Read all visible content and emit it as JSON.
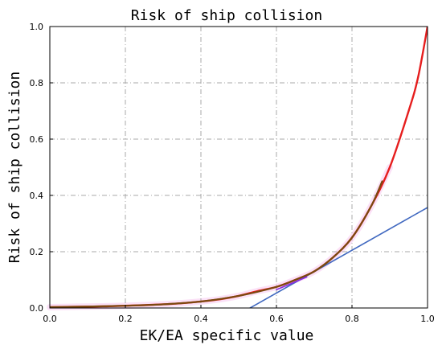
{
  "chart_data": {
    "type": "line",
    "title": "Risk of ship collision",
    "xlabel": "EK/EA specific value",
    "ylabel": "Risk of ship collision",
    "xlim": [
      0.0,
      1.0
    ],
    "ylim": [
      0.0,
      1.0
    ],
    "x_ticks": [
      "0.0",
      "0.2",
      "0.4",
      "0.6",
      "0.8",
      "1.0"
    ],
    "y_ticks": [
      "0.0",
      "0.2",
      "0.4",
      "0.6",
      "0.8",
      "1.0"
    ],
    "grid": true,
    "series": [
      {
        "color": "#e61e1e",
        "style": "curve",
        "points": [
          [
            0.0,
            0.003
          ],
          [
            0.05,
            0.004
          ],
          [
            0.1,
            0.005
          ],
          [
            0.15,
            0.006
          ],
          [
            0.2,
            0.008
          ],
          [
            0.25,
            0.01
          ],
          [
            0.3,
            0.013
          ],
          [
            0.35,
            0.017
          ],
          [
            0.4,
            0.023
          ],
          [
            0.45,
            0.031
          ],
          [
            0.5,
            0.043
          ],
          [
            0.55,
            0.06
          ],
          [
            0.6,
            0.075
          ],
          [
            0.65,
            0.1
          ],
          [
            0.7,
            0.13
          ],
          [
            0.75,
            0.18
          ],
          [
            0.8,
            0.25
          ],
          [
            0.85,
            0.36
          ],
          [
            0.9,
            0.5
          ],
          [
            0.95,
            0.7
          ],
          [
            0.975,
            0.82
          ],
          [
            1.0,
            1.0
          ]
        ]
      },
      {
        "color": "#4169c0",
        "style": "straight",
        "points": [
          [
            0.53,
            0.0
          ],
          [
            1.0,
            0.357
          ]
        ]
      },
      {
        "color": "#7a4a10",
        "style": "curve",
        "points": [
          [
            0.0,
            0.003
          ],
          [
            0.1,
            0.005
          ],
          [
            0.2,
            0.008
          ],
          [
            0.3,
            0.013
          ],
          [
            0.4,
            0.023
          ],
          [
            0.5,
            0.043
          ],
          [
            0.6,
            0.075
          ],
          [
            0.65,
            0.1
          ],
          [
            0.7,
            0.13
          ],
          [
            0.75,
            0.18
          ],
          [
            0.8,
            0.25
          ],
          [
            0.85,
            0.36
          ],
          [
            0.88,
            0.45
          ]
        ]
      },
      {
        "color": "#8a2be2",
        "style": "straight",
        "points": [
          [
            0.6,
            0.065
          ],
          [
            0.68,
            0.11
          ]
        ]
      }
    ]
  }
}
